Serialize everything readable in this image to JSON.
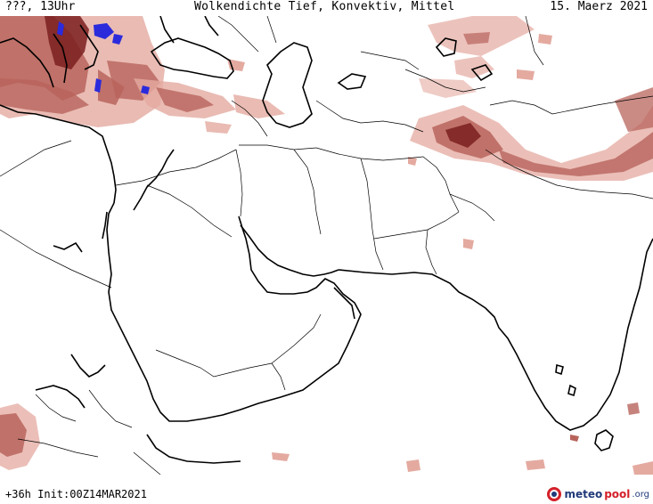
{
  "header": {
    "location": "???, 13Uhr",
    "title": "Wolkendichte   Tief, Konvektiv, Mittel",
    "date": "15. Maerz 2021"
  },
  "footer": {
    "forecast": "+36h  Init:00Z14MAR2021"
  },
  "logo": {
    "part1": "meteo",
    "part2": "pool",
    "part3": ".org",
    "icon": "meteopool-logo-icon"
  },
  "legend_colors": {
    "cloud_low": "#e4aaa0",
    "cloud_mid": "#b8645c",
    "cloud_high": "#7a1e1e",
    "convective": "#2b2bdc"
  }
}
